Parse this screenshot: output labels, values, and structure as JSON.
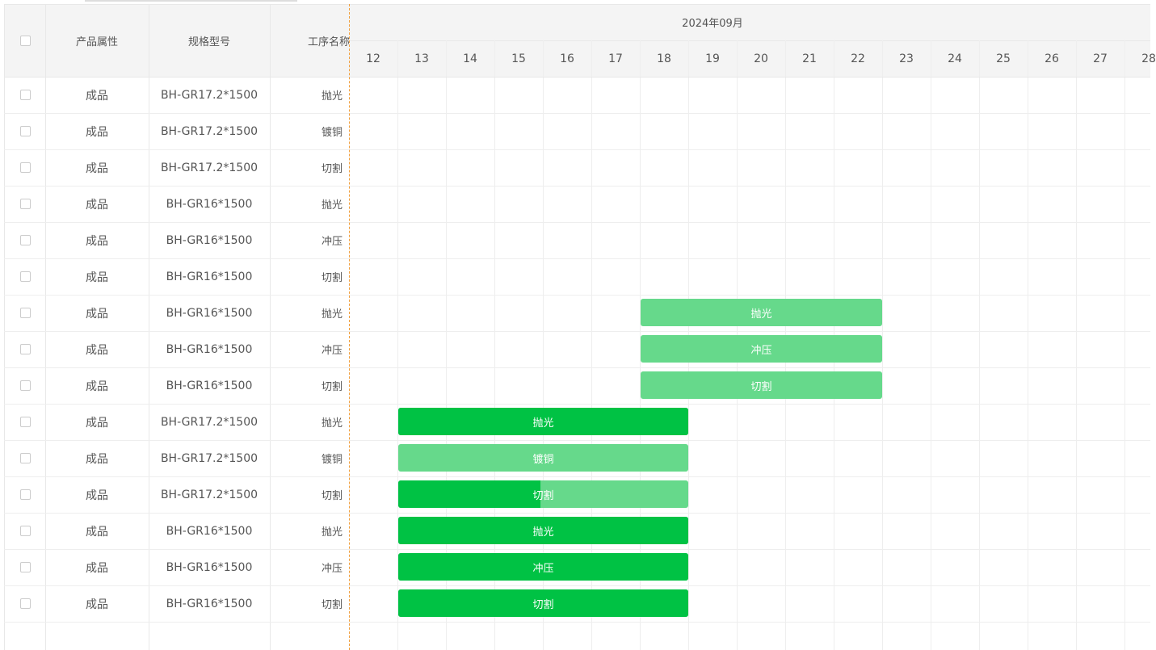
{
  "header": {
    "columns": [
      "产品属性",
      "规格型号",
      "工序名称"
    ],
    "month": "2024年09月",
    "days": [
      12,
      13,
      14,
      15,
      16,
      17,
      18,
      19,
      20,
      21,
      22,
      23,
      24,
      25,
      26,
      27,
      28
    ]
  },
  "rows": [
    {
      "attribute": "成品",
      "spec": "BH-GR17.2*1500",
      "process": "抛光"
    },
    {
      "attribute": "成品",
      "spec": "BH-GR17.2*1500",
      "process": "镀铜"
    },
    {
      "attribute": "成品",
      "spec": "BH-GR17.2*1500",
      "process": "切割"
    },
    {
      "attribute": "成品",
      "spec": "BH-GR16*1500",
      "process": "抛光"
    },
    {
      "attribute": "成品",
      "spec": "BH-GR16*1500",
      "process": "冲压"
    },
    {
      "attribute": "成品",
      "spec": "BH-GR16*1500",
      "process": "切割"
    },
    {
      "attribute": "成品",
      "spec": "BH-GR16*1500",
      "process": "抛光",
      "start": 18,
      "end": 22,
      "progress": 0
    },
    {
      "attribute": "成品",
      "spec": "BH-GR16*1500",
      "process": "冲压",
      "start": 18,
      "end": 22,
      "progress": 0
    },
    {
      "attribute": "成品",
      "spec": "BH-GR16*1500",
      "process": "切割",
      "start": 18,
      "end": 22,
      "progress": 0
    },
    {
      "attribute": "成品",
      "spec": "BH-GR17.2*1500",
      "process": "抛光",
      "start": 13,
      "end": 18,
      "progress": 100
    },
    {
      "attribute": "成品",
      "spec": "BH-GR17.2*1500",
      "process": "镀铜",
      "start": 13,
      "end": 18,
      "progress": 0
    },
    {
      "attribute": "成品",
      "spec": "BH-GR17.2*1500",
      "process": "切割",
      "start": 13,
      "end": 18,
      "progress": 49
    },
    {
      "attribute": "成品",
      "spec": "BH-GR16*1500",
      "process": "抛光",
      "start": 13,
      "end": 18,
      "progress": 100
    },
    {
      "attribute": "成品",
      "spec": "BH-GR16*1500",
      "process": "冲压",
      "start": 13,
      "end": 18,
      "progress": 100
    },
    {
      "attribute": "成品",
      "spec": "BH-GR16*1500",
      "process": "切割",
      "start": 13,
      "end": 18,
      "progress": 100
    }
  ]
}
